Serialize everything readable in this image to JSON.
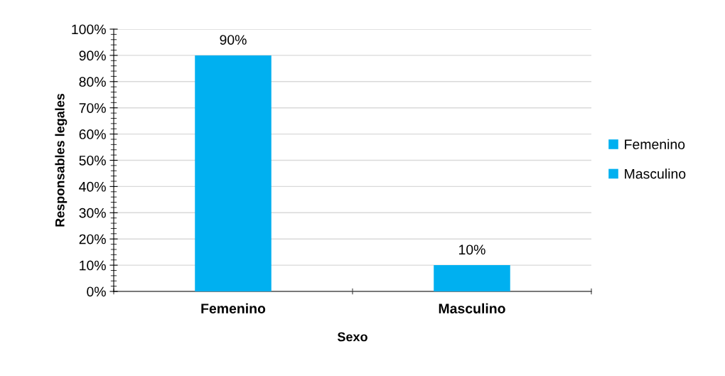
{
  "chart_data": {
    "type": "bar",
    "xlabel": "Sexo",
    "ylabel": "Responsables legales",
    "categories": [
      "Femenino",
      "Masculino"
    ],
    "series": [
      {
        "name": "Femenino",
        "color": "#00b0f0",
        "values": [
          90,
          null
        ],
        "value_labels": [
          "90%",
          null
        ]
      },
      {
        "name": "Masculino",
        "color": "#00b0f0",
        "values": [
          null,
          10
        ],
        "value_labels": [
          null,
          "10%"
        ]
      }
    ],
    "ylim": [
      0,
      100
    ],
    "yticks": [
      {
        "value": 0,
        "label": "0%"
      },
      {
        "value": 10,
        "label": "10%"
      },
      {
        "value": 20,
        "label": "20%"
      },
      {
        "value": 30,
        "label": "30%"
      },
      {
        "value": 40,
        "label": "40%"
      },
      {
        "value": 50,
        "label": "50%"
      },
      {
        "value": 60,
        "label": "60%"
      },
      {
        "value": 70,
        "label": "70%"
      },
      {
        "value": 80,
        "label": "80%"
      },
      {
        "value": 90,
        "label": "90%"
      },
      {
        "value": 100,
        "label": "100%"
      }
    ],
    "grid": "y",
    "legend": "right"
  }
}
